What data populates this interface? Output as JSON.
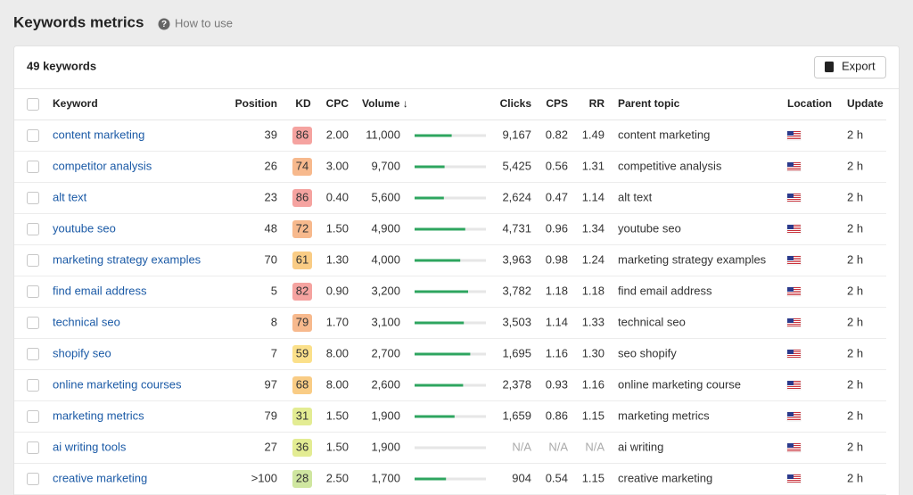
{
  "header": {
    "title": "Keywords metrics",
    "help": "How to use"
  },
  "table": {
    "count": "49 keywords",
    "export": "Export",
    "columns": [
      "Keyword",
      "Position",
      "KD",
      "CPC",
      "Volume ↓",
      "Clicks",
      "CPS",
      "RR",
      "Parent topic",
      "Location",
      "Update"
    ],
    "bar_color": "#2ea55f",
    "bar_track": "#e6e6e6",
    "rows": [
      {
        "keyword": "content marketing",
        "position": "39",
        "kd": 86,
        "kd_color": "#f5a3a0",
        "cpc": "2.00",
        "volume": "11,000",
        "volume_bar": 52,
        "clicks": "9,167",
        "cps": "0.82",
        "rr": "1.49",
        "parent_topic": "content marketing",
        "update": "2 h"
      },
      {
        "keyword": "competitor analysis",
        "position": "26",
        "kd": 74,
        "kd_color": "#f7b98d",
        "cpc": "3.00",
        "volume": "9,700",
        "volume_bar": 42,
        "clicks": "5,425",
        "cps": "0.56",
        "rr": "1.31",
        "parent_topic": "competitive analysis",
        "update": "2 h"
      },
      {
        "keyword": "alt text",
        "position": "23",
        "kd": 86,
        "kd_color": "#f5a3a0",
        "cpc": "0.40",
        "volume": "5,600",
        "volume_bar": 41,
        "clicks": "2,624",
        "cps": "0.47",
        "rr": "1.14",
        "parent_topic": "alt text",
        "update": "2 h"
      },
      {
        "keyword": "youtube seo",
        "position": "48",
        "kd": 72,
        "kd_color": "#f7b98d",
        "cpc": "1.50",
        "volume": "4,900",
        "volume_bar": 71,
        "clicks": "4,731",
        "cps": "0.96",
        "rr": "1.34",
        "parent_topic": "youtube seo",
        "update": "2 h"
      },
      {
        "keyword": "marketing strategy examples",
        "position": "70",
        "kd": 61,
        "kd_color": "#f9cc85",
        "cpc": "1.30",
        "volume": "4,000",
        "volume_bar": 64,
        "clicks": "3,963",
        "cps": "0.98",
        "rr": "1.24",
        "parent_topic": "marketing strategy examples",
        "update": "2 h"
      },
      {
        "keyword": "find email address",
        "position": "5",
        "kd": 82,
        "kd_color": "#f5a3a0",
        "cpc": "0.90",
        "volume": "3,200",
        "volume_bar": 75,
        "clicks": "3,782",
        "cps": "1.18",
        "rr": "1.18",
        "parent_topic": "find email address",
        "update": "2 h"
      },
      {
        "keyword": "technical seo",
        "position": "8",
        "kd": 79,
        "kd_color": "#f7b98d",
        "cpc": "1.70",
        "volume": "3,100",
        "volume_bar": 69,
        "clicks": "3,503",
        "cps": "1.14",
        "rr": "1.33",
        "parent_topic": "technical seo",
        "update": "2 h"
      },
      {
        "keyword": "shopify seo",
        "position": "7",
        "kd": 59,
        "kd_color": "#fbe08a",
        "cpc": "8.00",
        "volume": "2,700",
        "volume_bar": 78,
        "clicks": "1,695",
        "cps": "1.16",
        "rr": "1.30",
        "parent_topic": "seo shopify",
        "update": "2 h"
      },
      {
        "keyword": "online marketing courses",
        "position": "97",
        "kd": 68,
        "kd_color": "#f9cc85",
        "cpc": "8.00",
        "volume": "2,600",
        "volume_bar": 68,
        "clicks": "2,378",
        "cps": "0.93",
        "rr": "1.16",
        "parent_topic": "online marketing course",
        "update": "2 h"
      },
      {
        "keyword": "marketing metrics",
        "position": "79",
        "kd": 31,
        "kd_color": "#e3ec93",
        "cpc": "1.50",
        "volume": "1,900",
        "volume_bar": 56,
        "clicks": "1,659",
        "cps": "0.86",
        "rr": "1.15",
        "parent_topic": "marketing metrics",
        "update": "2 h"
      },
      {
        "keyword": "ai writing tools",
        "position": "27",
        "kd": 36,
        "kd_color": "#e3ec93",
        "cpc": "1.50",
        "volume": "1,900",
        "volume_bar": 0,
        "clicks": "N/A",
        "cps": "N/A",
        "rr": "N/A",
        "parent_topic": "ai writing",
        "update": "2 h"
      },
      {
        "keyword": "creative marketing",
        "position": ">100",
        "kd": 28,
        "kd_color": "#cfe6a0",
        "cpc": "2.50",
        "volume": "1,700",
        "volume_bar": 44,
        "clicks": "904",
        "cps": "0.54",
        "rr": "1.15",
        "parent_topic": "creative marketing",
        "update": "2 h"
      }
    ]
  }
}
